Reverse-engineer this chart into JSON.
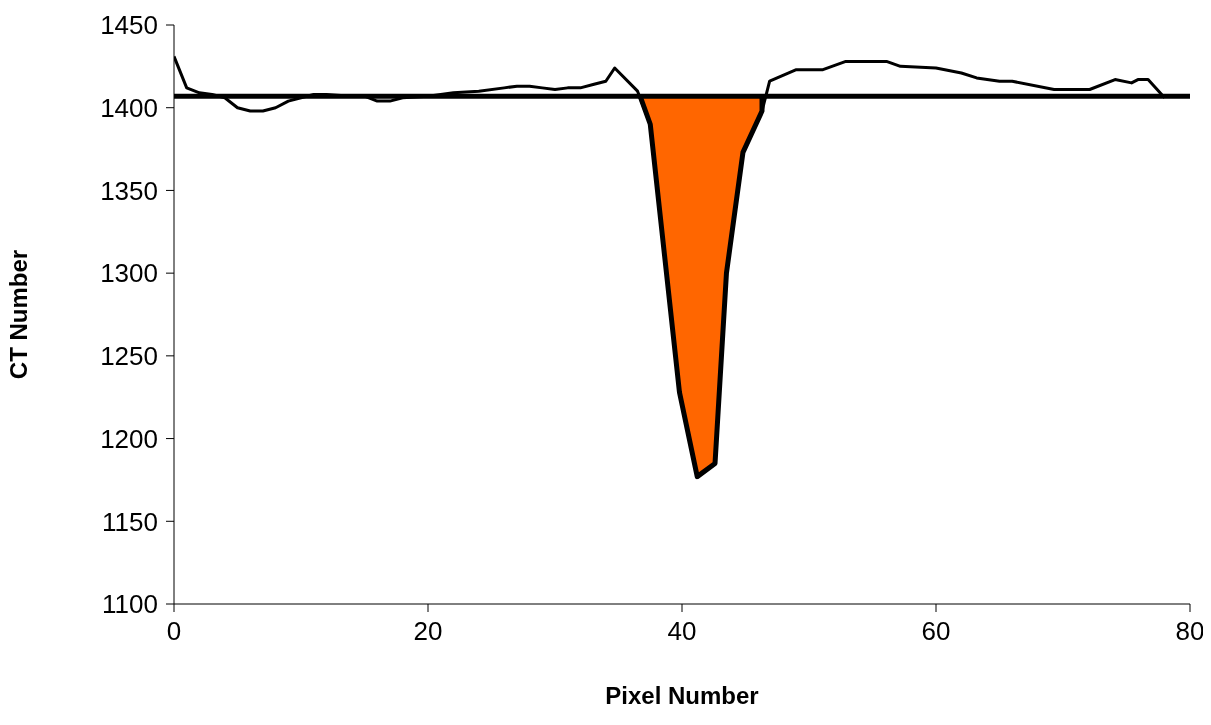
{
  "chart_data": {
    "type": "line",
    "xlabel": "Pixel Number",
    "ylabel": "CT Number",
    "xlim": [
      0,
      80
    ],
    "xticks": [
      0,
      20,
      40,
      60,
      80
    ],
    "ylim": [
      1100,
      1450
    ],
    "yticks": [
      1100,
      1150,
      1200,
      1250,
      1300,
      1350,
      1400,
      1450
    ],
    "grid": false,
    "marker": "none",
    "line_style": "solid",
    "series": [
      {
        "color": "#000000",
        "x": [
          0,
          1,
          2,
          3,
          4,
          5,
          6,
          7,
          8,
          9,
          10,
          11,
          12,
          14,
          15,
          16,
          17,
          18,
          20,
          22,
          24,
          26,
          27,
          28,
          29,
          30,
          31,
          32,
          33,
          34,
          34.7,
          36.5,
          37.5,
          39.8,
          41.2,
          42.6,
          43.5,
          44.8,
          46.3,
          46.9,
          49,
          51.1,
          52.9,
          56.1,
          57.2,
          60,
          62,
          63.2,
          65,
          66,
          69.3,
          72.1,
          74.1,
          75.4,
          75.9,
          76.7,
          78
        ],
        "values": [
          1431,
          1412,
          1409,
          1408,
          1406,
          1400,
          1398,
          1398,
          1400,
          1404,
          1406,
          1408,
          1408,
          1407,
          1407,
          1404,
          1404,
          1406,
          1407,
          1409,
          1410,
          1412,
          1413,
          1413,
          1412,
          1411,
          1412,
          1412,
          1414,
          1416,
          1424,
          1410,
          1390,
          1228,
          1177,
          1185,
          1300,
          1373,
          1398,
          1416,
          1423,
          1423,
          1428,
          1428,
          1425,
          1424,
          1421,
          1418,
          1416,
          1416,
          1411,
          1411,
          1417,
          1415,
          1417,
          1417,
          1406
        ]
      },
      {
        "type": "area",
        "color": "#ff6600",
        "x": [
          36.7,
          37.5,
          39.8,
          41.2,
          42.6,
          43.5,
          44.8,
          46.3,
          46.3
        ],
        "values": [
          1407,
          1390,
          1228,
          1177,
          1185,
          1300,
          1373,
          1398,
          1407
        ]
      }
    ],
    "ref_lines": [
      {
        "axis": "y",
        "value": 1407,
        "color": "#000000"
      }
    ]
  }
}
